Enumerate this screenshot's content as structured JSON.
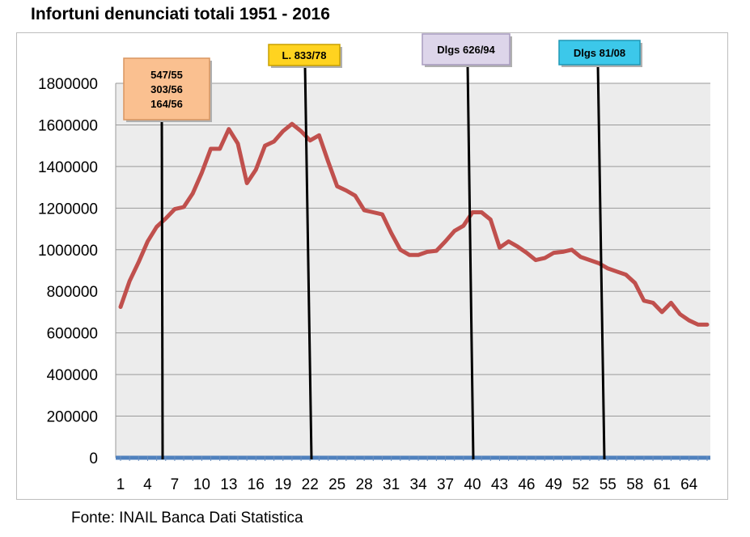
{
  "chart_data": {
    "type": "line",
    "title": "Infortuni denunciati totali 1951 - 2016",
    "xlabel": "",
    "ylabel": "",
    "x": [
      1,
      2,
      3,
      4,
      5,
      6,
      7,
      8,
      9,
      10,
      11,
      12,
      13,
      14,
      15,
      16,
      17,
      18,
      19,
      20,
      21,
      22,
      23,
      24,
      25,
      26,
      27,
      28,
      29,
      30,
      31,
      32,
      33,
      34,
      35,
      36,
      37,
      38,
      39,
      40,
      41,
      42,
      43,
      44,
      45,
      46,
      47,
      48,
      49,
      50,
      51,
      52,
      53,
      54,
      55,
      56,
      57,
      58,
      59,
      60,
      61,
      62,
      63,
      64,
      65,
      66
    ],
    "series": [
      {
        "values": [
          725000,
          850000,
          940000,
          1040000,
          1110000,
          1150000,
          1195000,
          1205000,
          1270000,
          1370000,
          1485000,
          1485000,
          1580000,
          1510000,
          1320000,
          1385000,
          1500000,
          1520000,
          1570000,
          1605000,
          1570000,
          1525000,
          1550000,
          1425000,
          1305000,
          1285000,
          1260000,
          1190000,
          1180000,
          1170000,
          1080000,
          1000000,
          975000,
          975000,
          990000,
          995000,
          1040000,
          1090000,
          1115000,
          1180000,
          1180000,
          1145000,
          1010000,
          1040000,
          1015000,
          985000,
          950000,
          960000,
          985000,
          990000,
          1000000,
          965000,
          950000,
          935000,
          910000,
          895000,
          880000,
          840000,
          755000,
          745000,
          700000,
          745000,
          690000,
          660000,
          640000,
          640000
        ]
      }
    ],
    "x_tick_labels": [
      "1",
      "4",
      "7",
      "10",
      "13",
      "16",
      "19",
      "22",
      "25",
      "28",
      "31",
      "34",
      "37",
      "40",
      "43",
      "46",
      "49",
      "52",
      "55",
      "58",
      "61",
      "64"
    ],
    "y_tick_labels": [
      "0",
      "200000",
      "400000",
      "600000",
      "800000",
      "1000000",
      "1200000",
      "1400000",
      "1600000",
      "1800000"
    ],
    "ylim": [
      0,
      1800000
    ],
    "xlim": [
      1,
      66
    ],
    "grid": "horizontal",
    "line_color": "#c0504d",
    "baseline_color": "#4f81bd",
    "annotations": [
      {
        "lines": [
          "547/55",
          "303/56",
          "164/56"
        ],
        "x": 6,
        "fill": "#fac090",
        "stroke": "#d99560"
      },
      {
        "lines": [
          "L. 833/78"
        ],
        "x": 22,
        "fill": "#ffd320",
        "stroke": "#c8a000"
      },
      {
        "lines": [
          "Dlgs 626/94"
        ],
        "x": 40,
        "fill": "#ddd5ea",
        "stroke": "#a89cbf"
      },
      {
        "lines": [
          "Dlgs 81/08"
        ],
        "x": 55,
        "fill": "#3cc8ea",
        "stroke": "#1f97b5"
      }
    ]
  },
  "source_note": "Fonte: INAIL Banca Dati Statistica"
}
